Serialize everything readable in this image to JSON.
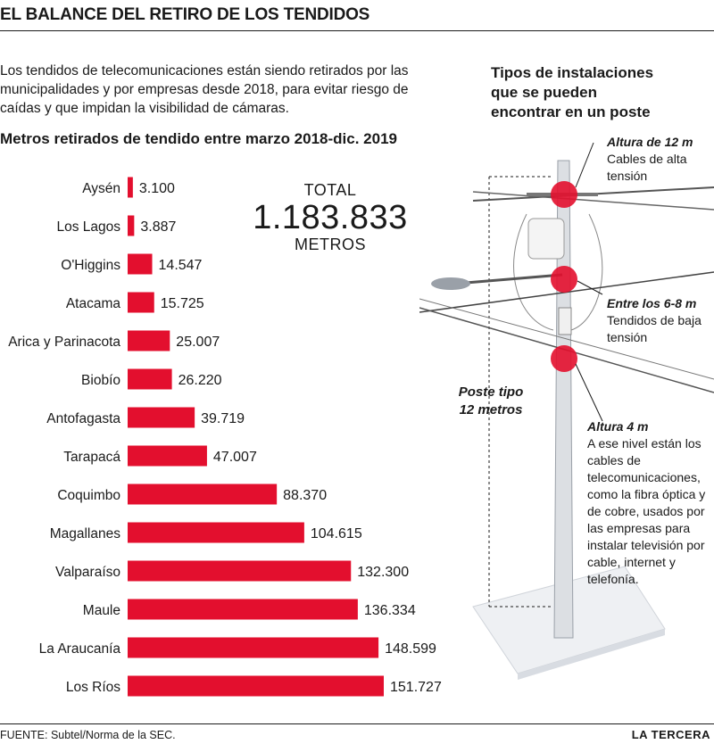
{
  "headline": "EL BALANCE DEL RETIRO DE LOS TENDIDOS",
  "intro": "Los tendidos de telecomunicaciones están siendo retirados por las municipalidades y por empresas desde 2018, para evitar riesgo de caídas y que impidan la visibilidad de cámaras.",
  "total": {
    "label": "TOTAL",
    "value": "1.183.833",
    "unit": "METROS"
  },
  "right_title": [
    "Tipos de instalaciones",
    "que se pueden",
    "encontrar en un poste"
  ],
  "pole_label": [
    "Poste tipo",
    "12 metros"
  ],
  "callouts": {
    "top": {
      "height": "Altura de 12 m",
      "lines": [
        "Cables de alta",
        "tensión"
      ]
    },
    "middle": {
      "height": "Entre los 6-8 m",
      "lines": [
        "Tendidos de baja",
        "tensión"
      ]
    },
    "bottom": {
      "height": "Altura 4 m",
      "lines": [
        "A ese nivel están los",
        "cables de",
        "telecomunicaciones,",
        "como la fibra óptica y",
        "de cobre, usados por",
        "las empresas para",
        "instalar televisión por",
        "cable, internet y",
        "telefonía."
      ]
    }
  },
  "source": "FUENTE: Subtel/Norma de la SEC.",
  "brand": "LA TERCERA",
  "colors": {
    "bar": "#e30f2e",
    "text": "#1a1a1a"
  },
  "chart_data": {
    "type": "bar",
    "orientation": "horizontal",
    "title": "Metros retirados de tendido entre marzo 2018-dic. 2019",
    "categories": [
      "Aysén",
      "Los Lagos",
      "O'Higgins",
      "Atacama",
      "Arica y Parinacota",
      "Biobío",
      "Antofagasta",
      "Tarapacá",
      "Coquimbo",
      "Magallanes",
      "Valparaíso",
      "Maule",
      "La Araucanía",
      "Los Ríos"
    ],
    "values": [
      3100,
      3887,
      14547,
      15725,
      25007,
      26220,
      39719,
      47007,
      88370,
      104615,
      132300,
      136334,
      148599,
      151727
    ],
    "value_labels": [
      "3.100",
      "3.887",
      "14.547",
      "15.725",
      "25.007",
      "26.220",
      "39.719",
      "47.007",
      "88.370",
      "104.615",
      "132.300",
      "136.334",
      "148.599",
      "151.727"
    ],
    "grid": false,
    "legend": "none"
  }
}
